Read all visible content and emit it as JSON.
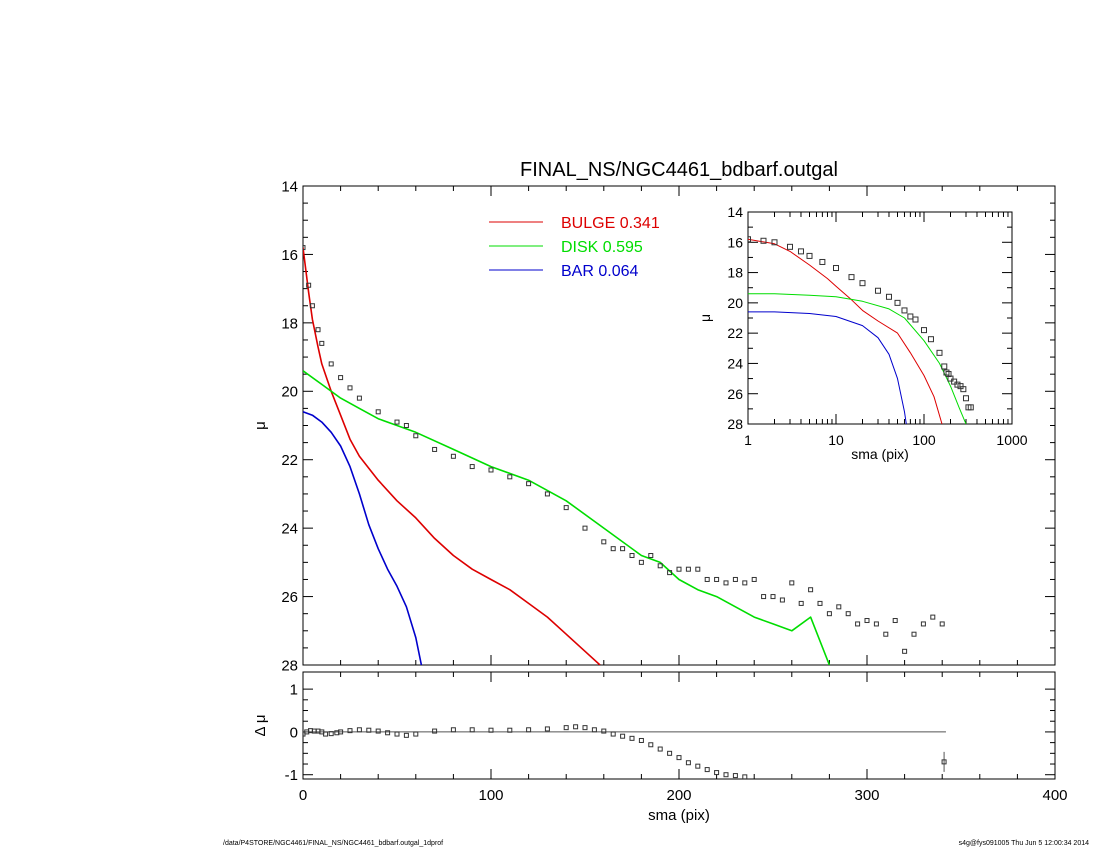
{
  "colors": {
    "bulge": "#dd0000",
    "disk": "#00dd00",
    "bar": "#0000cc",
    "data": "#333333",
    "axis": "#000000"
  },
  "footer": {
    "left": "/data/P4STORE/NGC4461/FINAL_NS/NGC4461_bdbarf.outgal_1dprof",
    "right": "s4g@fys091005  Thu Jun  5 12:00:34 2014"
  },
  "chart_data": [
    {
      "type": "line",
      "title": "FINAL_NS/NGC4461_bdbarf.outgal",
      "xlabel": "",
      "ylabel": "μ",
      "xlim": [
        0,
        400
      ],
      "ylim": [
        28,
        14
      ],
      "y_inverted": true,
      "xticks": [
        "0",
        "100",
        "200",
        "300",
        "400"
      ],
      "yticks": [
        "14",
        "16",
        "18",
        "20",
        "22",
        "24",
        "26",
        "28"
      ],
      "legend_position": "top-center",
      "legend": [
        {
          "name": "BULGE",
          "value": "0.341",
          "color": "#dd0000"
        },
        {
          "name": "DISK",
          "value": "0.595",
          "color": "#00dd00"
        },
        {
          "name": "BAR",
          "value": "0.064",
          "color": "#0000cc"
        }
      ],
      "series": [
        {
          "name": "BULGE",
          "x": [
            0,
            3,
            5,
            8,
            10,
            15,
            20,
            25,
            30,
            40,
            50,
            60,
            70,
            80,
            90,
            100,
            110,
            120,
            130,
            140,
            150,
            158
          ],
          "y": [
            15.8,
            17.1,
            17.9,
            18.7,
            19.2,
            20.0,
            20.7,
            21.4,
            21.9,
            22.6,
            23.2,
            23.7,
            24.3,
            24.8,
            25.2,
            25.5,
            25.8,
            26.2,
            26.6,
            27.1,
            27.6,
            28.0
          ]
        },
        {
          "name": "DISK",
          "x": [
            0,
            10,
            20,
            30,
            40,
            50,
            60,
            80,
            100,
            120,
            140,
            160,
            180,
            190,
            200,
            210,
            220,
            230,
            240,
            250,
            260,
            270,
            280
          ],
          "y": [
            19.4,
            19.8,
            20.2,
            20.5,
            20.8,
            21.0,
            21.2,
            21.7,
            22.2,
            22.6,
            23.2,
            24.0,
            24.8,
            25.0,
            25.5,
            25.8,
            26.0,
            26.3,
            26.6,
            26.8,
            27.0,
            26.6,
            28.0
          ]
        },
        {
          "name": "BAR",
          "x": [
            0,
            5,
            10,
            15,
            20,
            25,
            30,
            35,
            40,
            45,
            50,
            55,
            60,
            63
          ],
          "y": [
            20.6,
            20.7,
            20.9,
            21.2,
            21.6,
            22.2,
            23.0,
            23.9,
            24.6,
            25.2,
            25.7,
            26.3,
            27.2,
            28.0
          ]
        },
        {
          "name": "data",
          "marker": "square",
          "x": [
            0,
            3,
            5,
            8,
            10,
            15,
            20,
            25,
            30,
            40,
            50,
            55,
            60,
            70,
            80,
            90,
            100,
            110,
            120,
            130,
            140,
            150,
            160,
            165,
            170,
            175,
            180,
            185,
            190,
            195,
            200,
            205,
            210,
            215,
            220,
            225,
            230,
            235,
            240,
            245,
            250,
            255,
            260,
            265,
            270,
            275,
            280,
            285,
            290,
            295,
            300,
            305,
            310,
            315,
            320,
            325,
            330,
            335,
            340
          ],
          "y": [
            15.8,
            16.9,
            17.5,
            18.2,
            18.6,
            19.2,
            19.6,
            19.9,
            20.2,
            20.6,
            20.9,
            21.0,
            21.3,
            21.7,
            21.9,
            22.2,
            22.3,
            22.5,
            22.7,
            23.0,
            23.4,
            24.0,
            24.4,
            24.6,
            24.6,
            24.8,
            25.0,
            24.8,
            25.1,
            25.3,
            25.2,
            25.2,
            25.2,
            25.5,
            25.5,
            25.6,
            25.5,
            25.6,
            25.5,
            26.0,
            26.0,
            26.1,
            25.6,
            26.2,
            25.8,
            26.2,
            26.5,
            26.3,
            26.5,
            26.8,
            26.7,
            26.8,
            27.1,
            26.7,
            27.6,
            27.1,
            26.8,
            26.6,
            26.8
          ]
        }
      ]
    },
    {
      "type": "scatter",
      "title": "",
      "xlabel": "sma (pix)",
      "ylabel": "Δ μ",
      "xlim": [
        0,
        400
      ],
      "ylim": [
        -1.1,
        1.4
      ],
      "xticks": [
        "0",
        "100",
        "200",
        "300",
        "400"
      ],
      "yticks": [
        "1",
        "0",
        "-1"
      ],
      "series": [
        {
          "name": "residual",
          "marker": "square",
          "x": [
            0,
            2,
            4,
            6,
            8,
            10,
            12,
            15,
            18,
            20,
            25,
            30,
            35,
            40,
            45,
            50,
            55,
            60,
            70,
            80,
            90,
            100,
            110,
            120,
            130,
            140,
            145,
            150,
            155,
            160,
            165,
            170,
            175,
            180,
            185,
            190,
            195,
            200,
            205,
            210,
            215,
            220,
            225,
            230,
            235
          ],
          "y": [
            -0.05,
            0.0,
            0.03,
            0.02,
            0.02,
            0.0,
            -0.05,
            -0.04,
            -0.02,
            0.0,
            0.03,
            0.05,
            0.04,
            0.02,
            -0.02,
            -0.05,
            -0.08,
            -0.05,
            0.02,
            0.05,
            0.05,
            0.04,
            0.04,
            0.05,
            0.07,
            0.1,
            0.12,
            0.1,
            0.05,
            0.02,
            -0.05,
            -0.1,
            -0.15,
            -0.2,
            -0.3,
            -0.4,
            -0.5,
            -0.6,
            -0.72,
            -0.8,
            -0.88,
            -0.95,
            -1.0,
            -1.02,
            -1.05
          ]
        },
        {
          "name": "outlier",
          "marker": "square_errorbar",
          "x": [
            341
          ],
          "y": [
            -0.7
          ]
        }
      ],
      "zero_line": {
        "x": [
          0,
          342
        ],
        "y": 0
      }
    },
    {
      "type": "line",
      "title": "",
      "xlabel": "sma (pix)",
      "ylabel": "μ",
      "xscale": "log",
      "xlim": [
        1,
        1000
      ],
      "ylim": [
        28,
        14
      ],
      "y_inverted": true,
      "xticks": [
        "1",
        "10",
        "100",
        "1000"
      ],
      "yticks": [
        "14",
        "16",
        "18",
        "20",
        "22",
        "24",
        "26",
        "28"
      ],
      "series": [
        {
          "name": "BULGE",
          "x": [
            1,
            2,
            3,
            5,
            8,
            10,
            15,
            20,
            30,
            50,
            70,
            100,
            130,
            160
          ],
          "y": [
            15.8,
            16.1,
            16.6,
            17.5,
            18.4,
            18.9,
            19.8,
            20.5,
            21.2,
            22.0,
            23.3,
            24.8,
            26.2,
            28.0
          ]
        },
        {
          "name": "DISK",
          "x": [
            1,
            2,
            5,
            10,
            20,
            40,
            60,
            100,
            150,
            200,
            250,
            300
          ],
          "y": [
            19.4,
            19.4,
            19.5,
            19.6,
            19.9,
            20.4,
            21.0,
            22.5,
            24.0,
            25.5,
            26.9,
            28.0
          ]
        },
        {
          "name": "BAR",
          "x": [
            1,
            2,
            5,
            10,
            20,
            30,
            40,
            50,
            60,
            63
          ],
          "y": [
            20.6,
            20.6,
            20.7,
            20.9,
            21.5,
            22.3,
            23.4,
            25.0,
            27.2,
            28.0
          ]
        },
        {
          "name": "data",
          "marker": "square",
          "x": [
            1,
            1.5,
            2,
            3,
            4,
            5,
            7,
            10,
            15,
            20,
            30,
            40,
            50,
            60,
            70,
            80,
            100,
            120,
            150,
            170,
            180,
            190,
            200,
            220,
            240,
            260,
            280,
            300,
            320,
            340
          ],
          "y": [
            15.8,
            15.9,
            16.0,
            16.3,
            16.6,
            16.9,
            17.3,
            17.7,
            18.3,
            18.7,
            19.2,
            19.6,
            20.0,
            20.5,
            20.9,
            21.1,
            21.8,
            22.4,
            23.3,
            24.2,
            24.6,
            24.7,
            25.0,
            25.2,
            25.4,
            25.5,
            25.7,
            26.3,
            26.9,
            26.9
          ]
        }
      ]
    }
  ]
}
